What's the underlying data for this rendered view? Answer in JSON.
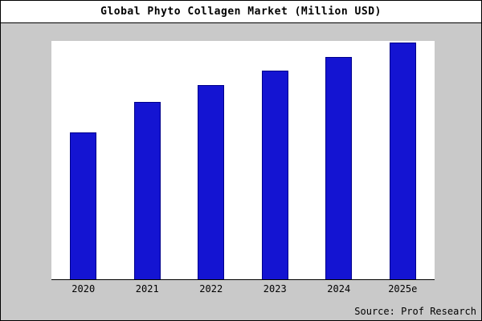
{
  "title": "Global Phyto Collagen Market (Million USD)",
  "source": "Source: Prof Research",
  "colors": {
    "bar": "#1414d2",
    "bar_edge": "#00008b",
    "frame_background": "#c9c9c9",
    "plot_background": "#ffffff",
    "title_background": "#ffffff",
    "text": "#000000"
  },
  "chart_data": {
    "type": "bar",
    "categories": [
      "2020",
      "2021",
      "2022",
      "2023",
      "2024",
      "2025e"
    ],
    "values": [
      62,
      75,
      82,
      88,
      94,
      100
    ],
    "title": "Global Phyto Collagen Market (Million USD)",
    "xlabel": "",
    "ylabel": "",
    "ylim": [
      0,
      100
    ],
    "grid": false,
    "legend": false,
    "annotations": [
      "Source: Prof Research"
    ]
  }
}
